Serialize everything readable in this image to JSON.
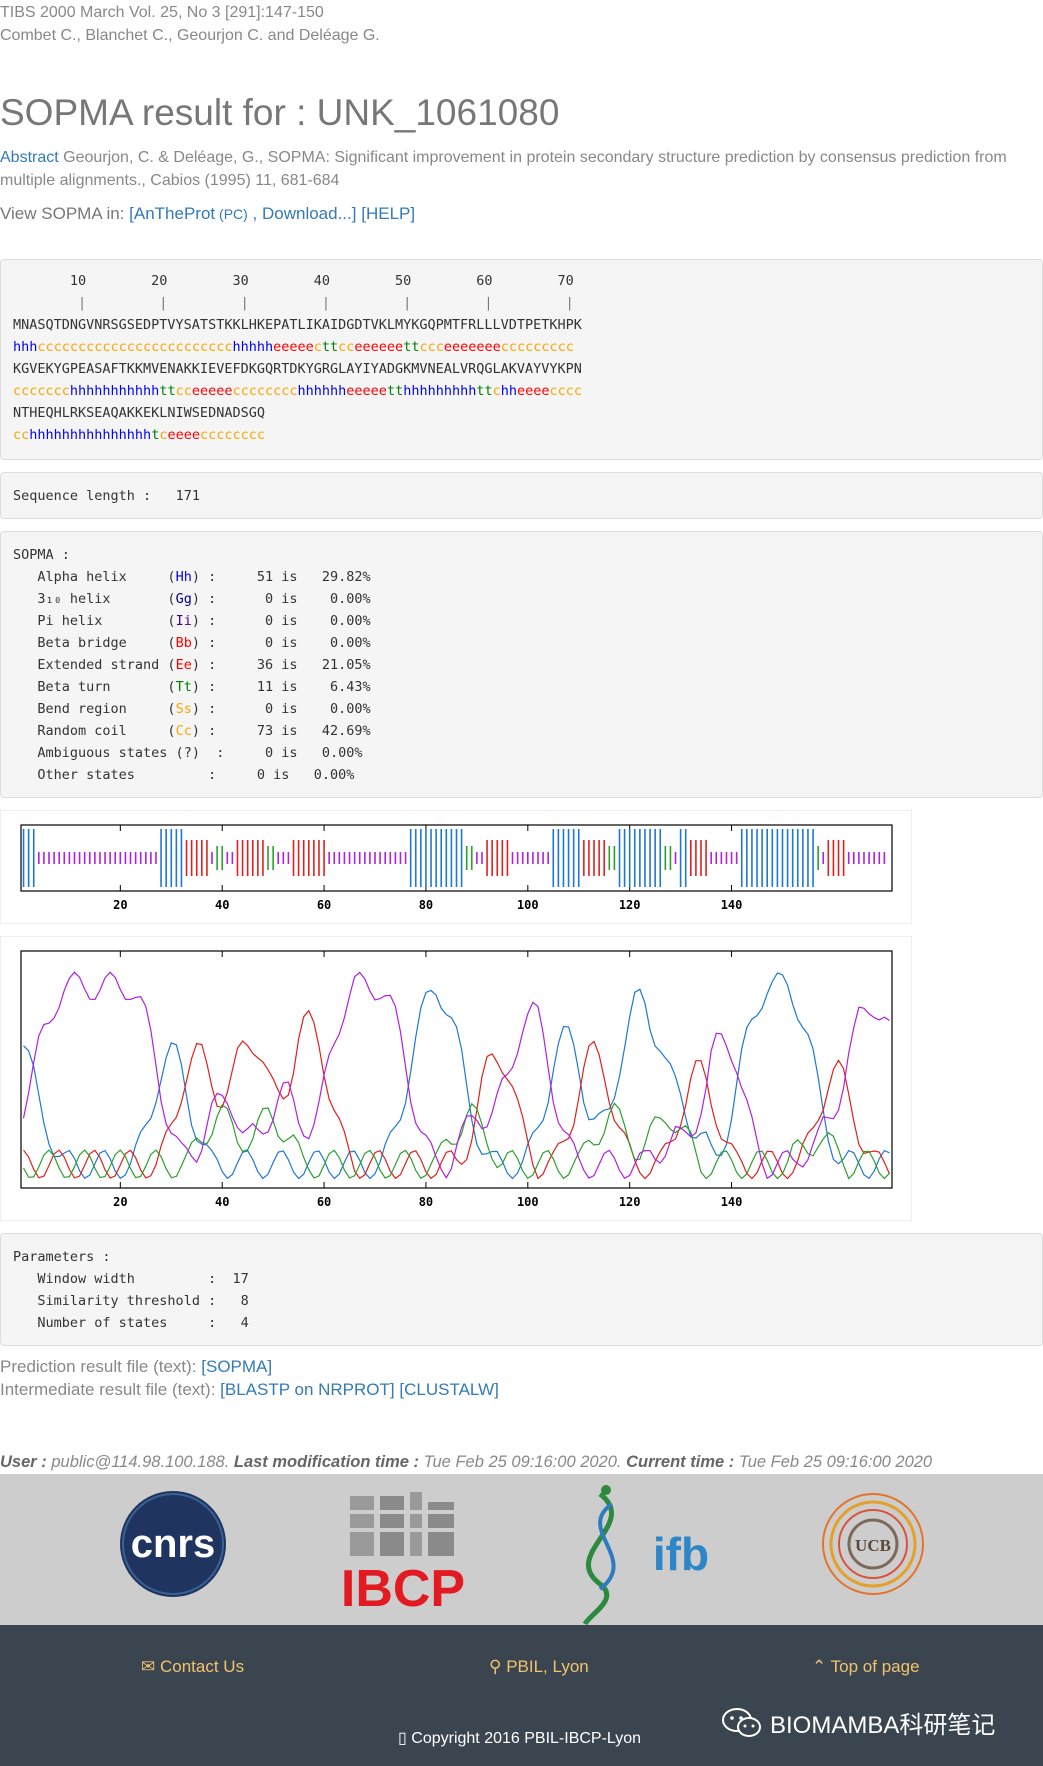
{
  "reference": {
    "journal": "TIBS 2000 March Vol. 25, No 3 [291]:147-150",
    "authors": "Combet C., Blanchet C., Geourjon C. and Deléage G."
  },
  "title": "SOPMA result for : UNK_1061080",
  "abstract": {
    "link": "Abstract",
    "text": " Geourjon, C. & Deléage, G., SOPMA: Significant improvement in protein secondary structure prediction by consensus prediction from multiple alignments., Cabios (1995) 11, 681-684"
  },
  "view": {
    "prefix": "View SOPMA in: ",
    "open_bracket": "[",
    "antheprot": "AnTheProt",
    "pc": " (PC)",
    "sep": " , ",
    "download": "Download...",
    "close": "]",
    "help": "[HELP]"
  },
  "ruler": {
    "numbers": "       10        20        30        40        50        60        70",
    "ticks": "        |         |         |         |         |         |         |"
  },
  "sequence": [
    {
      "aa": "MNASQTDNGVNRSGSEDPTVYSATSTKKLHKEPATLIKAIDGDTVKLMYKGQPMTFRLLLVDTPETKHPK",
      "ss": "hhhcccccccccccccccccccccccchhhhheeeeecttcceeeeeettccceeeeeeeccccccccc"
    },
    {
      "aa": "KGVEKYGPEASAFTKKMVENAKKIEVEFDKGQRTDKYGRGLAYIYADGKMVNEALVRQGLAKVAYVYKPN",
      "ss": "ccccccchhhhhhhhhhhttcceeeeecccccccchhhhhheeeeetthhhhhhhhhttchheeeecccc"
    },
    {
      "aa": "NTHEQHLRKSEAQAKKEKLNIWSEDNADSGQ",
      "ss": "cchhhhhhhhhhhhhhhtceeeecccccccc"
    }
  ],
  "seq_length": {
    "label": "Sequence length :",
    "value": "171"
  },
  "sopma": {
    "header": "SOPMA :",
    "rows": [
      {
        "name": "Alpha helix     ",
        "code": "Hh",
        "cls": "c-h",
        "count": "51",
        "pct": "29.82%"
      },
      {
        "name": "3₁₀ helix       ",
        "code": "Gg",
        "cls": "c-g",
        "count": "0",
        "pct": "0.00%"
      },
      {
        "name": "Pi helix        ",
        "code": "Ii",
        "cls": "c-i",
        "count": "0",
        "pct": "0.00%"
      },
      {
        "name": "Beta bridge     ",
        "code": "Bb",
        "cls": "c-b",
        "count": "0",
        "pct": "0.00%"
      },
      {
        "name": "Extended strand ",
        "code": "Ee",
        "cls": "c-e",
        "count": "36",
        "pct": "21.05%"
      },
      {
        "name": "Beta turn       ",
        "code": "Tt",
        "cls": "c-t",
        "count": "11",
        "pct": "6.43%"
      },
      {
        "name": "Bend region     ",
        "code": "Ss",
        "cls": "c-s",
        "count": "0",
        "pct": "0.00%"
      },
      {
        "name": "Random coil     ",
        "code": "Cc",
        "cls": "c-c",
        "count": "73",
        "pct": "42.69%"
      }
    ],
    "ambiguous": "Ambiguous states (?)  :     0 is   0.00%",
    "other": "Other states         :     0 is   0.00%"
  },
  "plots": {
    "ticks": [
      "20",
      "40",
      "60",
      "80",
      "100",
      "120",
      "140"
    ],
    "colors": {
      "helix": "#1f77d4",
      "strand": "#e0201c",
      "turn": "#2ca02c",
      "coil": "#b020e0"
    }
  },
  "parameters": {
    "header": "Parameters :",
    "rows": [
      "Window width         :  17",
      "Similarity threshold :   8",
      "Number of states     :   4"
    ]
  },
  "files": {
    "prediction_label": "Prediction result file (text): ",
    "prediction_link": "SOPMA",
    "intermediate_label": "Intermediate result file (text): ",
    "blastp": "BLASTP on NRPROT",
    "clustalw": "CLUSTALW"
  },
  "user": {
    "user_label": "User :",
    "user_value": " public@114.98.100.188. ",
    "mod_label": "Last modification time :",
    "mod_value": " Tue Feb 25 09:16:00 2020. ",
    "cur_label": "Current time :",
    "cur_value": " Tue Feb 25 09:16:00 2020"
  },
  "logos": {
    "cnrs": "cnrs",
    "ibcp": "IBCP",
    "ifb": "ifb",
    "ucb": "UCB"
  },
  "footer": {
    "contact": "Contact Us",
    "location": "PBIL, Lyon",
    "top": "Top of page",
    "copyright": "Copyright 2016 PBIL-IBCP-Lyon",
    "watermark": "BIOMAMBA科研笔记"
  }
}
